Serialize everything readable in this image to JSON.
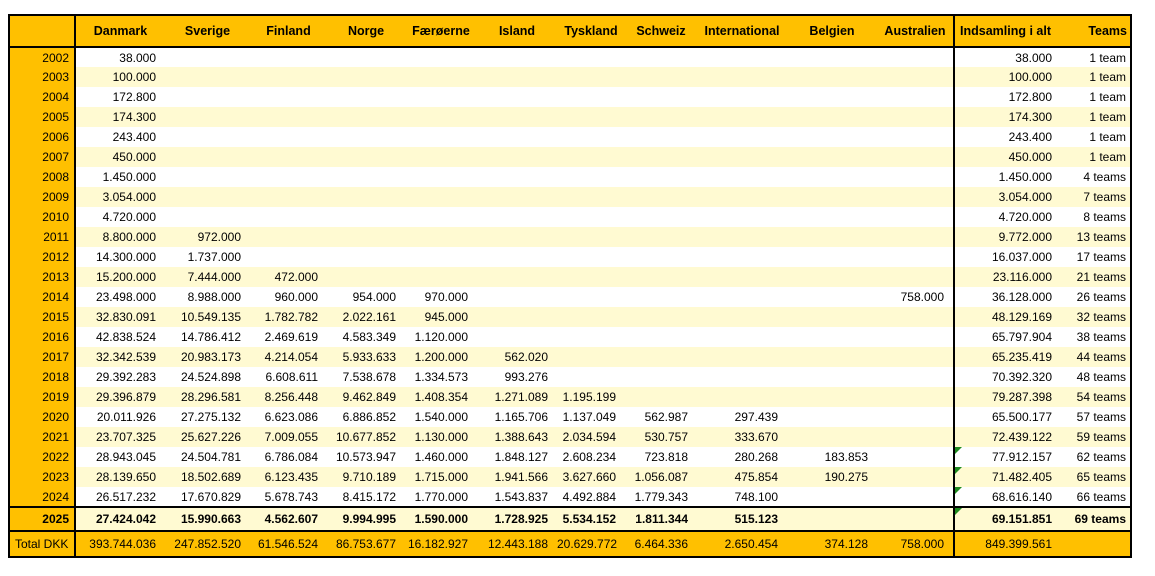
{
  "table": {
    "corner_label": "",
    "columns": [
      "Danmark",
      "Sverige",
      "Finland",
      "Norge",
      "Færøerne",
      "Island",
      "Tyskland",
      "Schweiz",
      "International",
      "Belgien",
      "Australien",
      "Indsamling i alt",
      "Teams"
    ],
    "rows": [
      {
        "year": "2002",
        "values": [
          "38.000",
          "",
          "",
          "",
          "",
          "",
          "",
          "",
          "",
          "",
          ""
        ],
        "indsamling": "38.000",
        "teams": "1 team",
        "flagged": false
      },
      {
        "year": "2003",
        "values": [
          "100.000",
          "",
          "",
          "",
          "",
          "",
          "",
          "",
          "",
          "",
          ""
        ],
        "indsamling": "100.000",
        "teams": "1 team",
        "flagged": false
      },
      {
        "year": "2004",
        "values": [
          "172.800",
          "",
          "",
          "",
          "",
          "",
          "",
          "",
          "",
          "",
          ""
        ],
        "indsamling": "172.800",
        "teams": "1 team",
        "flagged": false
      },
      {
        "year": "2005",
        "values": [
          "174.300",
          "",
          "",
          "",
          "",
          "",
          "",
          "",
          "",
          "",
          ""
        ],
        "indsamling": "174.300",
        "teams": "1 team",
        "flagged": false
      },
      {
        "year": "2006",
        "values": [
          "243.400",
          "",
          "",
          "",
          "",
          "",
          "",
          "",
          "",
          "",
          ""
        ],
        "indsamling": "243.400",
        "teams": "1 team",
        "flagged": false
      },
      {
        "year": "2007",
        "values": [
          "450.000",
          "",
          "",
          "",
          "",
          "",
          "",
          "",
          "",
          "",
          ""
        ],
        "indsamling": "450.000",
        "teams": "1 team",
        "flagged": false
      },
      {
        "year": "2008",
        "values": [
          "1.450.000",
          "",
          "",
          "",
          "",
          "",
          "",
          "",
          "",
          "",
          ""
        ],
        "indsamling": "1.450.000",
        "teams": "4 teams",
        "flagged": false
      },
      {
        "year": "2009",
        "values": [
          "3.054.000",
          "",
          "",
          "",
          "",
          "",
          "",
          "",
          "",
          "",
          ""
        ],
        "indsamling": "3.054.000",
        "teams": "7 teams",
        "flagged": false
      },
      {
        "year": "2010",
        "values": [
          "4.720.000",
          "",
          "",
          "",
          "",
          "",
          "",
          "",
          "",
          "",
          ""
        ],
        "indsamling": "4.720.000",
        "teams": "8 teams",
        "flagged": false
      },
      {
        "year": "2011",
        "values": [
          "8.800.000",
          "972.000",
          "",
          "",
          "",
          "",
          "",
          "",
          "",
          "",
          ""
        ],
        "indsamling": "9.772.000",
        "teams": "13 teams",
        "flagged": false
      },
      {
        "year": "2012",
        "values": [
          "14.300.000",
          "1.737.000",
          "",
          "",
          "",
          "",
          "",
          "",
          "",
          "",
          ""
        ],
        "indsamling": "16.037.000",
        "teams": "17 teams",
        "flagged": false
      },
      {
        "year": "2013",
        "values": [
          "15.200.000",
          "7.444.000",
          "472.000",
          "",
          "",
          "",
          "",
          "",
          "",
          "",
          ""
        ],
        "indsamling": "23.116.000",
        "teams": "21 teams",
        "flagged": false
      },
      {
        "year": "2014",
        "values": [
          "23.498.000",
          "8.988.000",
          "960.000",
          "954.000",
          "970.000",
          "",
          "",
          "",
          "",
          "",
          "758.000"
        ],
        "indsamling": "36.128.000",
        "teams": "26 teams",
        "flagged": false
      },
      {
        "year": "2015",
        "values": [
          "32.830.091",
          "10.549.135",
          "1.782.782",
          "2.022.161",
          "945.000",
          "",
          "",
          "",
          "",
          "",
          ""
        ],
        "indsamling": "48.129.169",
        "teams": "32 teams",
        "flagged": false
      },
      {
        "year": "2016",
        "values": [
          "42.838.524",
          "14.786.412",
          "2.469.619",
          "4.583.349",
          "1.120.000",
          "",
          "",
          "",
          "",
          "",
          ""
        ],
        "indsamling": "65.797.904",
        "teams": "38 teams",
        "flagged": false
      },
      {
        "year": "2017",
        "values": [
          "32.342.539",
          "20.983.173",
          "4.214.054",
          "5.933.633",
          "1.200.000",
          "562.020",
          "",
          "",
          "",
          "",
          ""
        ],
        "indsamling": "65.235.419",
        "teams": "44 teams",
        "flagged": false
      },
      {
        "year": "2018",
        "values": [
          "29.392.283",
          "24.524.898",
          "6.608.611",
          "7.538.678",
          "1.334.573",
          "993.276",
          "",
          "",
          "",
          "",
          ""
        ],
        "indsamling": "70.392.320",
        "teams": "48 teams",
        "flagged": false
      },
      {
        "year": "2019",
        "values": [
          "29.396.879",
          "28.296.581",
          "8.256.448",
          "9.462.849",
          "1.408.354",
          "1.271.089",
          "1.195.199",
          "",
          "",
          "",
          ""
        ],
        "indsamling": "79.287.398",
        "teams": "54 teams",
        "flagged": false
      },
      {
        "year": "2020",
        "values": [
          "20.011.926",
          "27.275.132",
          "6.623.086",
          "6.886.852",
          "1.540.000",
          "1.165.706",
          "1.137.049",
          "562.987",
          "297.439",
          "",
          ""
        ],
        "indsamling": "65.500.177",
        "teams": "57 teams",
        "flagged": false
      },
      {
        "year": "2021",
        "values": [
          "23.707.325",
          "25.627.226",
          "7.009.055",
          "10.677.852",
          "1.130.000",
          "1.388.643",
          "2.034.594",
          "530.757",
          "333.670",
          "",
          ""
        ],
        "indsamling": "72.439.122",
        "teams": "59 teams",
        "flagged": false
      },
      {
        "year": "2022",
        "values": [
          "28.943.045",
          "24.504.781",
          "6.786.084",
          "10.573.947",
          "1.460.000",
          "1.848.127",
          "2.608.234",
          "723.818",
          "280.268",
          "183.853",
          ""
        ],
        "indsamling": "77.912.157",
        "teams": "62 teams",
        "flagged": true
      },
      {
        "year": "2023",
        "values": [
          "28.139.650",
          "18.502.689",
          "6.123.435",
          "9.710.189",
          "1.715.000",
          "1.941.566",
          "3.627.660",
          "1.056.087",
          "475.854",
          "190.275",
          ""
        ],
        "indsamling": "71.482.405",
        "teams": "65 teams",
        "flagged": true
      },
      {
        "year": "2024",
        "values": [
          "26.517.232",
          "17.670.829",
          "5.678.743",
          "8.415.172",
          "1.770.000",
          "1.543.837",
          "4.492.884",
          "1.779.343",
          "748.100",
          "",
          ""
        ],
        "indsamling": "68.616.140",
        "teams": "66 teams",
        "flagged": true
      },
      {
        "year": "2025",
        "values": [
          "27.424.042",
          "15.990.663",
          "4.562.607",
          "9.994.995",
          "1.590.000",
          "1.728.925",
          "5.534.152",
          "1.811.344",
          "515.123",
          "",
          ""
        ],
        "indsamling": "69.151.851",
        "teams": "69 teams",
        "flagged": true,
        "emphasized": true
      }
    ],
    "totals": {
      "label": "Total DKK",
      "values": [
        "393.744.036",
        "247.852.520",
        "61.546.524",
        "86.753.677",
        "16.182.927",
        "12.443.188",
        "20.629.772",
        "6.464.336",
        "2.650.454",
        "374.128",
        "758.000"
      ],
      "indsamling": "849.399.561",
      "teams": ""
    }
  },
  "colors": {
    "header_bg": "#FFC000",
    "row_stripe": "#FFFAD2",
    "row_white": "#FFFFFF",
    "border": "#000000",
    "flag_green": "#1E8A1E",
    "text": "#000000"
  }
}
